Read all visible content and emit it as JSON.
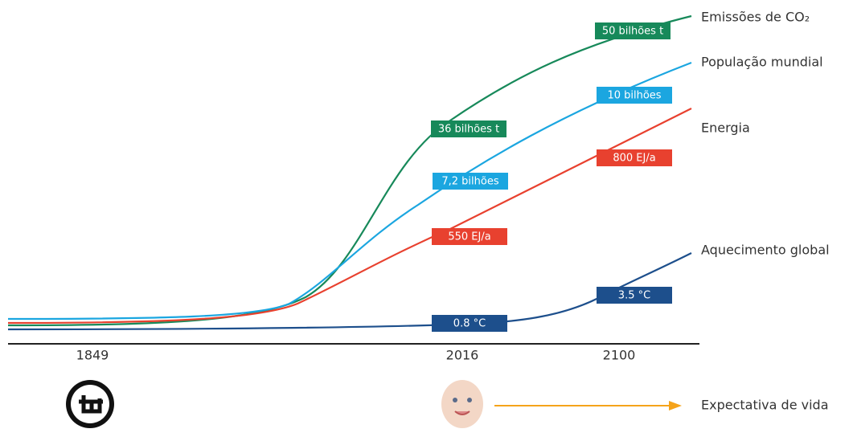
{
  "timeline": {
    "labels": [
      "1849",
      "2016",
      "2100"
    ]
  },
  "series": [
    {
      "name": "Emissões de CO₂",
      "color": "#17895a",
      "labels": [
        "36 bilhões t",
        "50 bilhões t"
      ]
    },
    {
      "name": "População mundial",
      "color": "#1ba6e0",
      "labels": [
        "7,2 bilhões",
        "10 bilhões"
      ]
    },
    {
      "name": "Energia",
      "color": "#e8412f",
      "labels": [
        "550 EJ/a",
        "800 EJ/a"
      ]
    },
    {
      "name": "Aquecimento global",
      "color": "#1d4f8c",
      "labels": [
        "0.8 °C",
        "3.5 °C"
      ]
    }
  ],
  "life_expectancy": "Expectativa de vida"
}
